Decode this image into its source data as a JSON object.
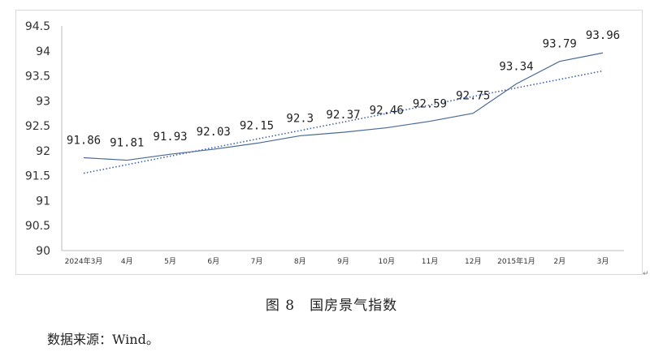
{
  "caption": "图 8　国房景气指数",
  "source": "数据来源：Wind。",
  "chart_data": {
    "type": "line",
    "title": "",
    "xlabel": "",
    "ylabel": "",
    "categories": [
      "2024年3月",
      "4月",
      "5月",
      "6月",
      "7月",
      "8月",
      "9月",
      "10月",
      "11月",
      "12月",
      "2015年1月",
      "2月",
      "3月"
    ],
    "series": [
      {
        "values": [
          91.86,
          91.81,
          91.93,
          92.03,
          92.15,
          92.3,
          92.37,
          92.46,
          92.59,
          92.75,
          93.34,
          93.79,
          93.96
        ]
      }
    ],
    "trendline": {
      "style": "dotted",
      "start": 91.55,
      "end": 93.6
    },
    "data_labels": [
      "91.86",
      "91.81",
      "91.93",
      "92.03",
      "92.15",
      "92.3",
      "92.37",
      "92.46",
      "92.59",
      "92.75",
      "93.34",
      "93.79",
      "93.96"
    ],
    "yticks": [
      "90",
      "90.5",
      "91",
      "91.5",
      "92",
      "92.5",
      "93",
      "93.5",
      "94",
      "94.5"
    ],
    "ylim": [
      90,
      94.5
    ],
    "grid": false,
    "colors": {
      "line": "#4a6a96",
      "trend": "#3d63a8"
    }
  }
}
